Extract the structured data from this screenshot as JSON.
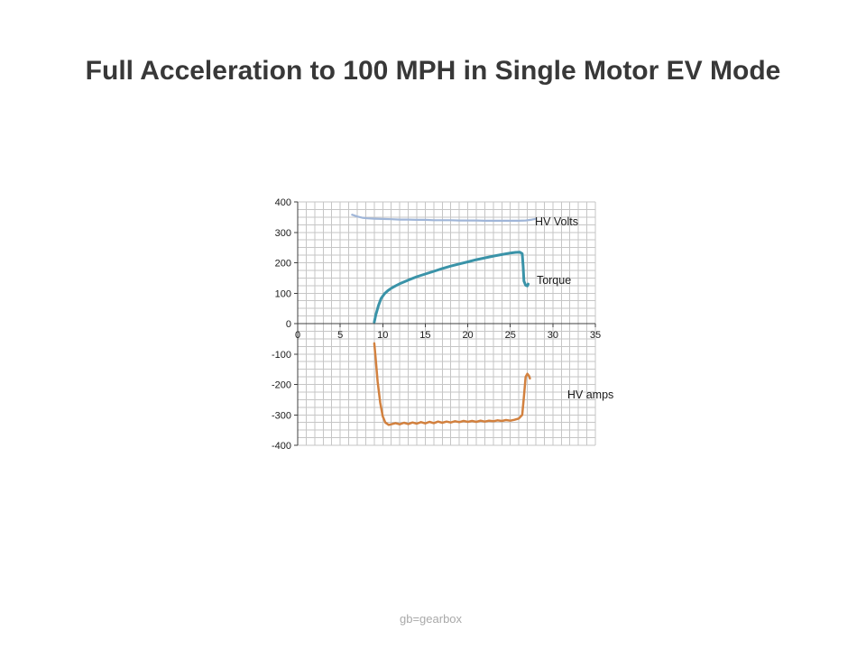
{
  "slide": {
    "title": "Full Acceleration to 100 MPH in Single Motor EV Mode",
    "footer": "gb=gearbox"
  },
  "chart_data": {
    "type": "line",
    "title": "",
    "xlabel": "",
    "ylabel": "",
    "xlim": [
      0,
      35
    ],
    "ylim": [
      -400,
      400
    ],
    "x_ticks": [
      0,
      5,
      10,
      15,
      20,
      25,
      30,
      35
    ],
    "y_ticks": [
      -400,
      -300,
      -200,
      -100,
      0,
      100,
      200,
      300,
      400
    ],
    "grid": {
      "on": true,
      "x_step": 1,
      "y_step": 25,
      "color": "#c6c6c6"
    },
    "axis_color": "#3f3f3f",
    "tick_label_color": "#1a1a1a",
    "legend_position": "inline-labels",
    "series": [
      {
        "name": "HV Volts",
        "label": "HV Volts",
        "color": "#a0b6d8",
        "width": 2.2,
        "label_x": 27.9,
        "label_y": 335,
        "x": [
          6.4,
          7,
          7.6,
          8.2,
          9,
          10,
          11,
          12,
          13,
          14,
          15,
          16,
          17,
          18,
          19,
          20,
          21,
          22,
          23,
          24,
          25,
          26,
          26.8,
          27.4,
          27.9
        ],
        "y": [
          358,
          352,
          348,
          346,
          345,
          344,
          343,
          342,
          342,
          341,
          341,
          340,
          340,
          340,
          339,
          339,
          339,
          338,
          338,
          338,
          338,
          338,
          339,
          341,
          344
        ]
      },
      {
        "name": "Torque",
        "label": "Torque",
        "color": "#3a93a8",
        "width": 3,
        "label_x": 28.1,
        "label_y": 142,
        "x": [
          9.0,
          9.2,
          9.5,
          9.8,
          10.2,
          10.6,
          11,
          11.5,
          12,
          12.5,
          13,
          14,
          15,
          16,
          17,
          18,
          19,
          20,
          21,
          22,
          23,
          24,
          25,
          25.6,
          26.1,
          26.4,
          26.5,
          26.6,
          26.8,
          27.0,
          27.1
        ],
        "y": [
          5,
          30,
          60,
          82,
          98,
          108,
          116,
          124,
          131,
          137,
          143,
          154,
          163,
          172,
          181,
          189,
          196,
          203,
          210,
          216,
          222,
          227,
          232,
          234,
          235,
          230,
          190,
          140,
          126,
          124,
          130
        ]
      },
      {
        "name": "HV amps",
        "label": "HV amps",
        "color": "#d2813f",
        "width": 2.5,
        "label_x": 31.7,
        "label_y": -234,
        "x": [
          9.0,
          9.15,
          9.4,
          9.7,
          10.0,
          10.3,
          10.7,
          11,
          11.5,
          12,
          12.5,
          13,
          13.5,
          14,
          14.5,
          15,
          15.5,
          16,
          16.5,
          17,
          17.5,
          18,
          18.5,
          19,
          19.5,
          20,
          20.5,
          21,
          21.5,
          22,
          22.5,
          23,
          23.5,
          24,
          24.5,
          25,
          25.5,
          26,
          26.4,
          26.6,
          26.8,
          27.0,
          27.2,
          27.3
        ],
        "y": [
          -65,
          -110,
          -190,
          -260,
          -305,
          -325,
          -333,
          -331,
          -327,
          -331,
          -326,
          -330,
          -325,
          -329,
          -324,
          -328,
          -323,
          -327,
          -322,
          -326,
          -322,
          -325,
          -321,
          -324,
          -320,
          -323,
          -320,
          -323,
          -319,
          -322,
          -319,
          -321,
          -318,
          -320,
          -317,
          -319,
          -316,
          -312,
          -300,
          -240,
          -175,
          -165,
          -172,
          -180
        ]
      }
    ]
  }
}
